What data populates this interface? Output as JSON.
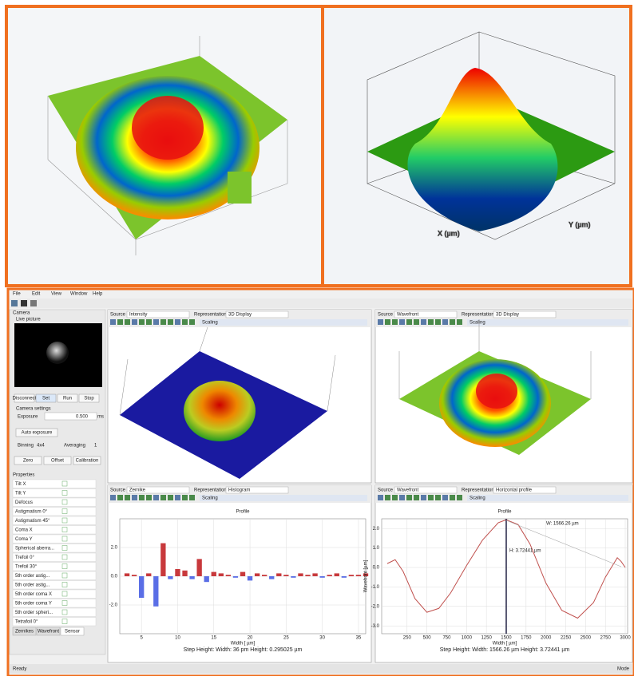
{
  "top_images": {
    "right_axis_labels": [
      "X (µm)",
      "Y (µm)"
    ]
  },
  "menu": [
    "File",
    "Edit",
    "View",
    "Window",
    "Help"
  ],
  "camera": {
    "header": "Camera",
    "live_picture": "Live picture",
    "buttons": [
      "Disconnect",
      "Set",
      "Run",
      "Stop"
    ],
    "settings": "Camera settings",
    "exposure": "Exposure",
    "exposure_value": "0.500",
    "exposure_unit": "ms",
    "auto_exposure": "Auto exposure",
    "binning": "Binning",
    "binning_value": "4x4",
    "averaging": "Averaging",
    "averaging_value": "1",
    "actions": [
      "Zero",
      "Offset",
      "Calibration"
    ]
  },
  "properties": {
    "header": "Properties",
    "items": [
      "Tilt X",
      "Tilt Y",
      "Defocus",
      "Astigmatism 0°",
      "Astigmatism 45°",
      "Coma X",
      "Coma Y",
      "Spherical aberra...",
      "Trefoil 0°",
      "Trefoil 30°",
      "5th order astig...",
      "5th order astig...",
      "5th order coma X",
      "5th order coma Y",
      "5th order spheri...",
      "Tetrafoil 0°"
    ]
  },
  "tabs": [
    "Zernikes",
    "Wavefront",
    "Sensor"
  ],
  "panels": [
    {
      "source_label": "Source",
      "source": "Intensity",
      "representation_label": "Representation",
      "representation": "3D Display",
      "scaling": "Scaling"
    },
    {
      "source_label": "Source",
      "source": "Wavefront",
      "representation_label": "Representation",
      "representation": "3D Display",
      "scaling": "Scaling"
    },
    {
      "source_label": "Source",
      "source": "Zernike",
      "representation_label": "Representation",
      "representation": "Histogram",
      "scaling": "Scaling"
    },
    {
      "source_label": "Source",
      "source": "Wavefront",
      "representation_label": "Representation",
      "representation": "Horizontal profile",
      "scaling": "Scaling"
    }
  ],
  "histogram": {
    "type": "bar",
    "title": "Profile",
    "x_label": "Width [ µm]",
    "info": "Step Height: Width: 36 pm Height: 0.295025 µm",
    "x": [
      3,
      4,
      5,
      6,
      7,
      8,
      9,
      10,
      11,
      12,
      13,
      14,
      15,
      16,
      17,
      18,
      19,
      20,
      21,
      22,
      23,
      24,
      25,
      26,
      27,
      28,
      29,
      30,
      31,
      32,
      33,
      34,
      35,
      36
    ],
    "values": [
      0.2,
      0.1,
      -1.5,
      0.2,
      -2.1,
      2.3,
      -0.2,
      0.5,
      0.4,
      -0.2,
      1.2,
      -0.4,
      0.3,
      0.2,
      0.1,
      -0.1,
      0.3,
      -0.3,
      0.2,
      0.1,
      -0.2,
      0.2,
      0.1,
      -0.1,
      0.2,
      0.1,
      0.2,
      -0.1,
      0.1,
      0.2,
      -0.1,
      0.1,
      0.1,
      0.2
    ],
    "positive_color": "#c8393c",
    "negative_color": "#5a6ee6",
    "xlim": [
      2,
      36
    ],
    "xticks": [
      5,
      10,
      15,
      20,
      25,
      30,
      35
    ],
    "ylim": [
      -4,
      4
    ],
    "yticks": [
      {
        "value": 2,
        "label": "2.0"
      },
      {
        "value": 0,
        "label": "0.0"
      },
      {
        "value": -2,
        "label": "-2.0"
      }
    ],
    "grid": true
  },
  "profile": {
    "type": "line",
    "title": "Profile",
    "x_label": "Width [ µm]",
    "y_label": "Wavefront [µm]",
    "info": "Step Height: Width: 1566.26 µm Height: 3.72441 µm",
    "cursor_width": "W: 1566.26 µm",
    "cursor_height": "H: 3.72441 µm",
    "x": [
      0,
      100,
      200,
      350,
      500,
      650,
      800,
      1000,
      1200,
      1400,
      1500,
      1650,
      1800,
      2000,
      2200,
      2400,
      2600,
      2750,
      2900,
      2950,
      3000
    ],
    "values": [
      0.2,
      0.4,
      -0.2,
      -1.6,
      -2.3,
      -2.1,
      -1.3,
      0.1,
      1.4,
      2.3,
      2.45,
      2.2,
      1.2,
      -0.8,
      -2.2,
      -2.6,
      -1.8,
      -0.5,
      0.5,
      0.3,
      0.0
    ],
    "color": "#c0504d",
    "xlim": [
      -70,
      3030
    ],
    "xticks": [
      250,
      500,
      750,
      1000,
      1250,
      1500,
      1750,
      2000,
      2250,
      2500,
      2750,
      3000
    ],
    "ylim": [
      -3.4,
      2.5
    ],
    "yticks": [
      {
        "value": 2,
        "label": "2.0"
      },
      {
        "value": 1,
        "label": "1.0"
      },
      {
        "value": 0,
        "label": "0.0"
      },
      {
        "value": -1,
        "label": "-1.0"
      },
      {
        "value": -2,
        "label": "-2.0"
      },
      {
        "value": -3,
        "label": "-3.0"
      }
    ],
    "grid": true
  },
  "status": {
    "left": "Ready",
    "right": "Mode"
  }
}
